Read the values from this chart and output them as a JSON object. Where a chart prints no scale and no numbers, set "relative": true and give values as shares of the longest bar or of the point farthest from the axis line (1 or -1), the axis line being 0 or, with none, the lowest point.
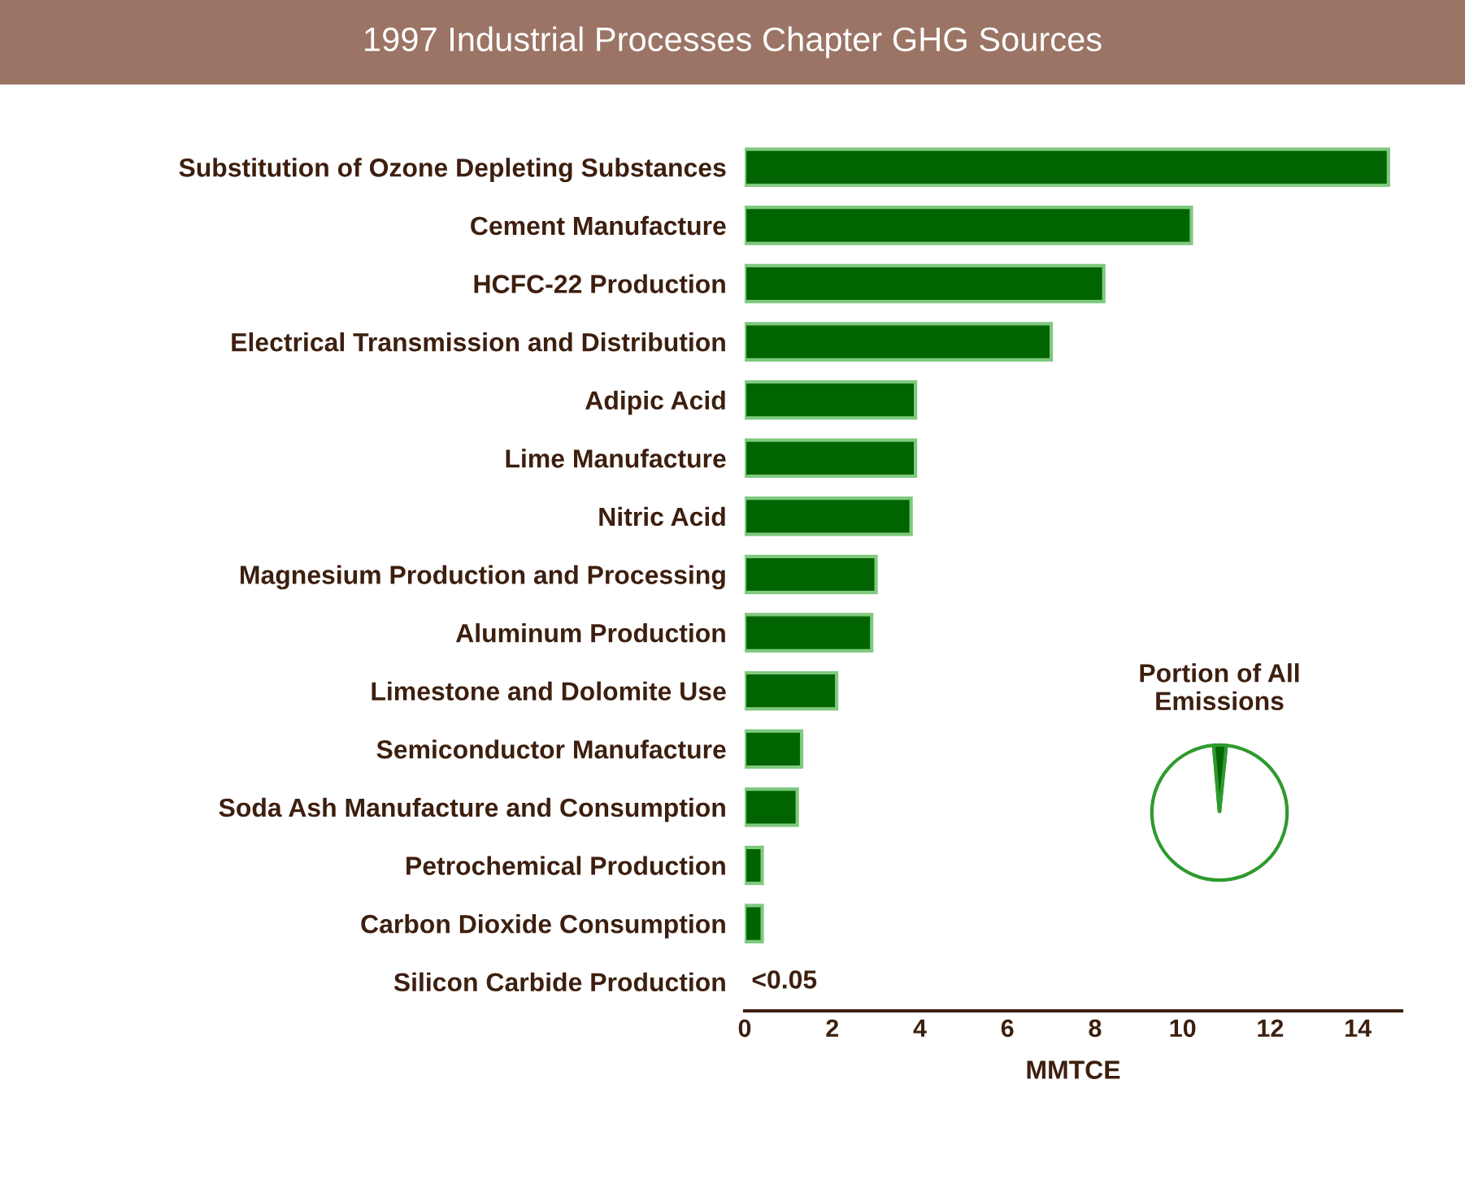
{
  "chart_data": [
    {
      "type": "bar",
      "orientation": "horizontal",
      "title": "1997 Industrial Processes Chapter GHG Sources",
      "xlabel": "MMTCE",
      "categories": [
        "Substitution of Ozone Depleting Substances",
        "Cement Manufacture",
        "HCFC-22 Production",
        "Electrical Transmission and Distribution",
        "Adipic Acid",
        "Lime Manufacture",
        "Nitric Acid",
        "Magnesium Production and Processing",
        "Aluminum Production",
        "Limestone and Dolomite Use",
        "Semiconductor Manufacture",
        "Soda Ash Manufacture and Consumption",
        "Petrochemical Production",
        "Carbon Dioxide Consumption",
        "Silicon Carbide Production"
      ],
      "values": [
        14.7,
        10.2,
        8.2,
        7.0,
        3.9,
        3.9,
        3.8,
        3.0,
        2.9,
        2.1,
        1.3,
        1.2,
        0.4,
        0.4,
        0
      ],
      "value_labels": [
        null,
        null,
        null,
        null,
        null,
        null,
        null,
        null,
        null,
        null,
        null,
        null,
        null,
        null,
        "<0.05"
      ],
      "color": "#006400",
      "xlim": [
        0,
        15
      ],
      "xticks": [
        0,
        2,
        4,
        6,
        8,
        10,
        12,
        14
      ],
      "grid": false
    },
    {
      "type": "pie",
      "title": "Portion of All\nEmissions",
      "relative": true,
      "categories": [
        null,
        null
      ],
      "values": [
        3,
        97
      ],
      "colors": [
        "#006400",
        "#ffffff"
      ]
    }
  ]
}
